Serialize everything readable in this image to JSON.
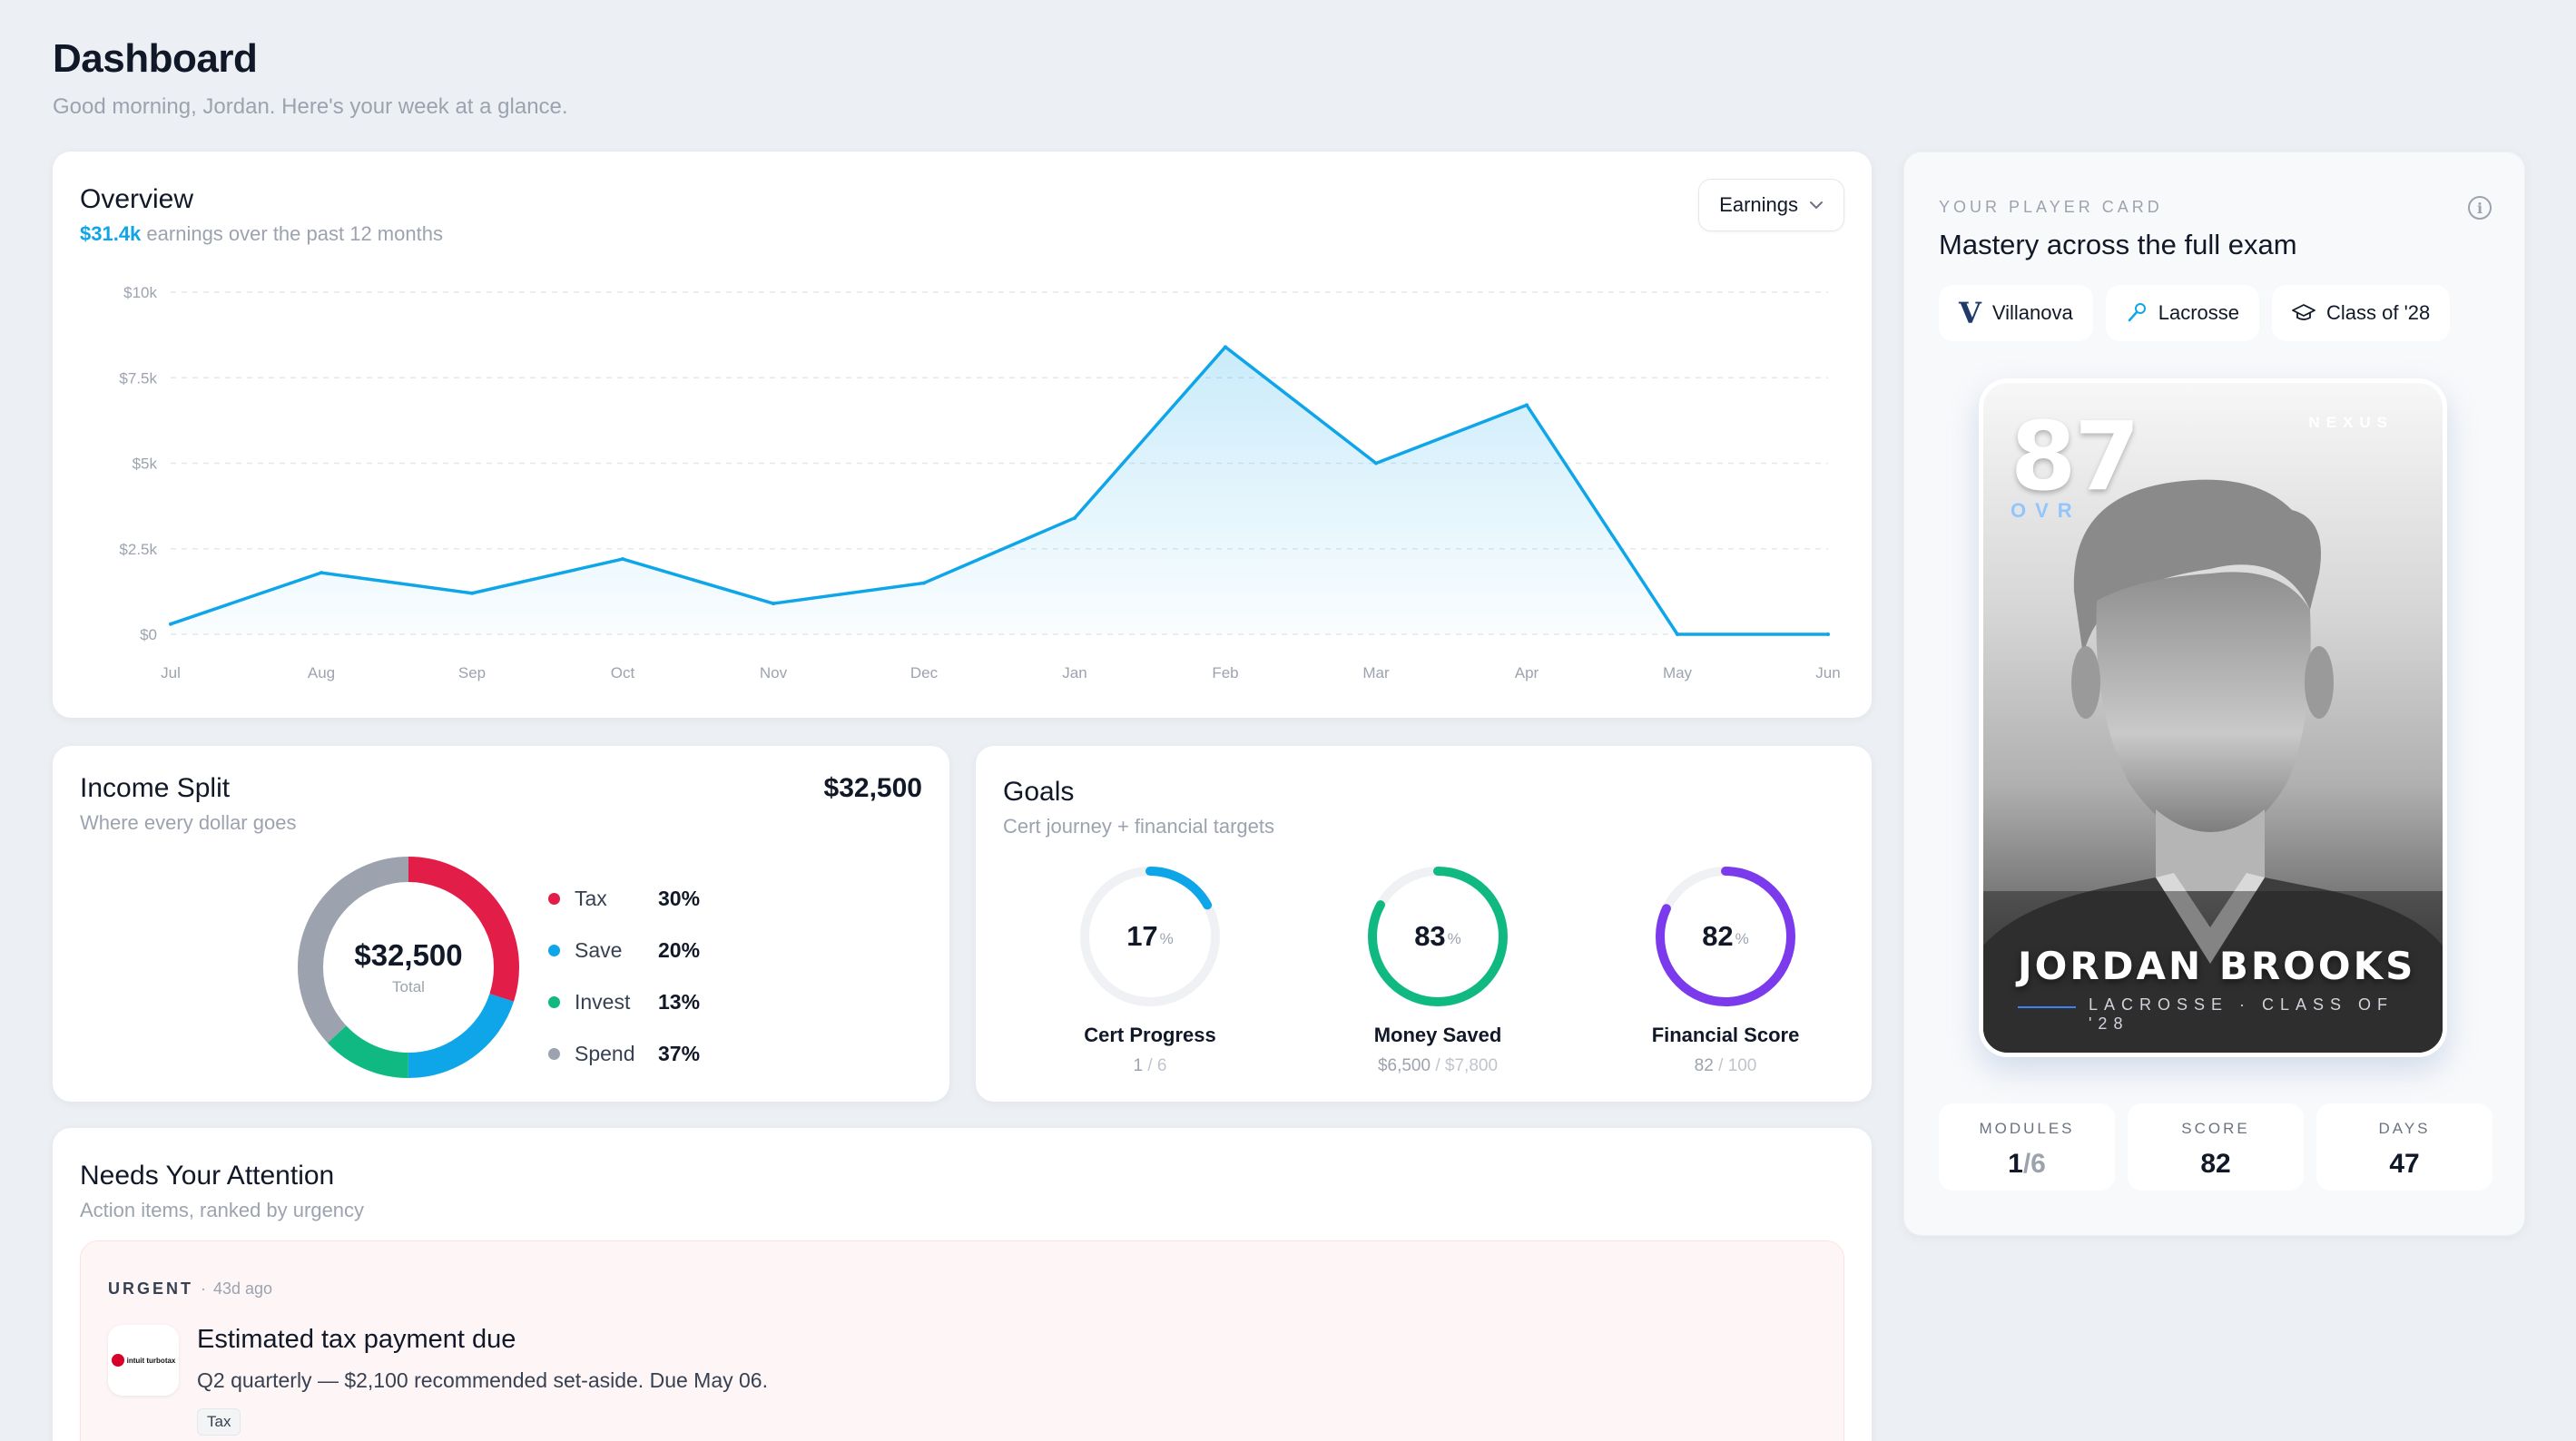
{
  "header": {
    "title": "Dashboard",
    "subtitle": "Good morning, Jordan. Here's your week at a glance."
  },
  "overview": {
    "title": "Overview",
    "amount": "$31.4k",
    "subtitle_rest": " earnings over the past 12 months",
    "dropdown_label": "Earnings"
  },
  "chart_data": {
    "type": "area",
    "categories": [
      "Jul",
      "Aug",
      "Sep",
      "Oct",
      "Nov",
      "Dec",
      "Jan",
      "Feb",
      "Mar",
      "Apr",
      "May",
      "Jun"
    ],
    "values": [
      300,
      1800,
      1200,
      2200,
      900,
      1500,
      3400,
      8400,
      5000,
      6700,
      0,
      0
    ],
    "ylim": [
      0,
      10000
    ],
    "yticks": [
      0,
      2500,
      5000,
      7500,
      10000
    ],
    "ytick_labels": [
      "$0",
      "$2.5k",
      "$5k",
      "$7.5k",
      "$10k"
    ],
    "grid": true,
    "color": "#0ea5e9"
  },
  "income": {
    "title": "Income Split",
    "subtitle": "Where every dollar goes",
    "total": "$32,500",
    "center_value": "$32,500",
    "center_label": "Total",
    "items": [
      {
        "label": "Tax",
        "value": "30%",
        "pct": 30,
        "color": "#e11d48"
      },
      {
        "label": "Save",
        "value": "20%",
        "pct": 20,
        "color": "#0ea5e9"
      },
      {
        "label": "Invest",
        "value": "13%",
        "pct": 13,
        "color": "#10b981"
      },
      {
        "label": "Spend",
        "value": "37%",
        "pct": 37,
        "color": "#9ca3af"
      }
    ]
  },
  "goals": {
    "title": "Goals",
    "subtitle": "Cert journey + financial targets",
    "items": [
      {
        "pct": "17",
        "pct_value": 17,
        "unit": "%",
        "label": "Cert Progress",
        "detail_a": "1",
        "detail_b": " / 6",
        "color": "#0ea5e9"
      },
      {
        "pct": "83",
        "pct_value": 83,
        "unit": "%",
        "label": "Money Saved",
        "detail_a": "$6,500",
        "detail_b": " / $7,800",
        "color": "#10b981"
      },
      {
        "pct": "82",
        "pct_value": 82,
        "unit": "%",
        "label": "Financial Score",
        "detail_a": "82",
        "detail_b": " / 100",
        "color": "#7c3aed"
      }
    ]
  },
  "attention": {
    "title": "Needs Your Attention",
    "subtitle": "Action items, ranked by urgency",
    "alert": {
      "urgency": "URGENT",
      "separator": "·",
      "ago": "43d ago",
      "logo_text": "intuit turbotax",
      "title": "Estimated tax payment due",
      "description": "Q2 quarterly — $2,100 recommended set-aside. Due May 06.",
      "tag": "Tax"
    }
  },
  "player": {
    "eyebrow": "YOUR PLAYER CARD",
    "title": "Mastery across the full exam",
    "chips": [
      {
        "label": "Villanova",
        "icon": "villanova-logo"
      },
      {
        "label": "Lacrosse",
        "icon": "lacrosse-stick-icon"
      },
      {
        "label": "Class of '28",
        "icon": "graduation-cap-icon"
      }
    ],
    "card": {
      "ovr": "87",
      "ovr_label": "OVR",
      "brand": "NEXUS",
      "name": "JORDAN BROOKS",
      "sub": "LACROSSE · CLASS OF '28"
    },
    "stats": [
      {
        "label": "MODULES",
        "value_a": "1",
        "value_b": "/6"
      },
      {
        "label": "SCORE",
        "value_a": "82",
        "value_b": ""
      },
      {
        "label": "DAYS",
        "value_a": "47",
        "value_b": ""
      }
    ]
  }
}
